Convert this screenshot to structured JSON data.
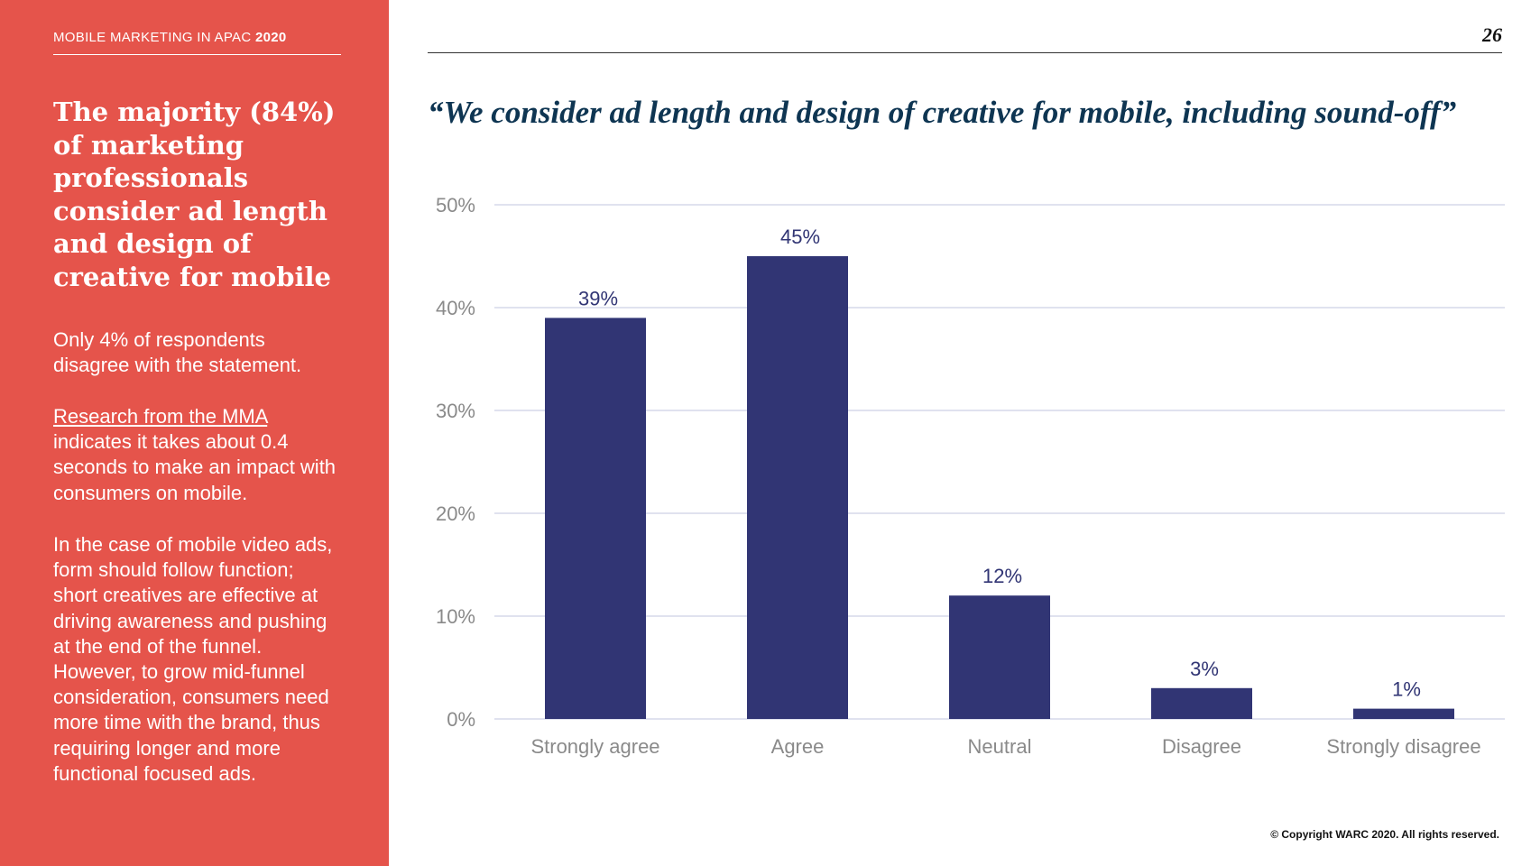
{
  "sidebar": {
    "report_title": "MOBILE MARKETING IN APAC",
    "report_year": "2020",
    "headline": "The majority (84%) of marketing professionals consider ad length and design of creative for mobile",
    "paragraph_1": "Only 4% of respondents disagree with the statement.",
    "paragraph_2_link": "Research from the MMA",
    "paragraph_2_rest": "indicates it takes about 0.4 seconds to make an impact with consumers on mobile.",
    "paragraph_3": "In the case of mobile video ads, form should follow function; short creatives are effective at driving awareness and pushing at the end of the funnel. However, to grow mid-funnel consideration, consumers need more time with the brand, thus requiring longer and more functional focused ads."
  },
  "page_number": "26",
  "copyright": "© Copyright WARC 2020. All rights reserved.",
  "colors": {
    "sidebar_bg": "#e5544b",
    "bar": "#313574",
    "quote": "#0e3552",
    "grid": "#d6d9ea"
  },
  "chart_data": {
    "type": "bar",
    "title": "“We consider ad length and design of creative for mobile, including sound-off”",
    "categories": [
      "Strongly agree",
      "Agree",
      "Neutral",
      "Disagree",
      "Strongly disagree"
    ],
    "values": [
      39,
      45,
      12,
      3,
      1
    ],
    "value_labels": [
      "39%",
      "45%",
      "12%",
      "3%",
      "1%"
    ],
    "y_ticks": [
      0,
      10,
      20,
      30,
      40,
      50
    ],
    "y_tick_labels": [
      "0%",
      "10%",
      "20%",
      "30%",
      "40%",
      "50%"
    ],
    "ylim": [
      0,
      50
    ],
    "grid": true,
    "xlabel": "",
    "ylabel": ""
  }
}
